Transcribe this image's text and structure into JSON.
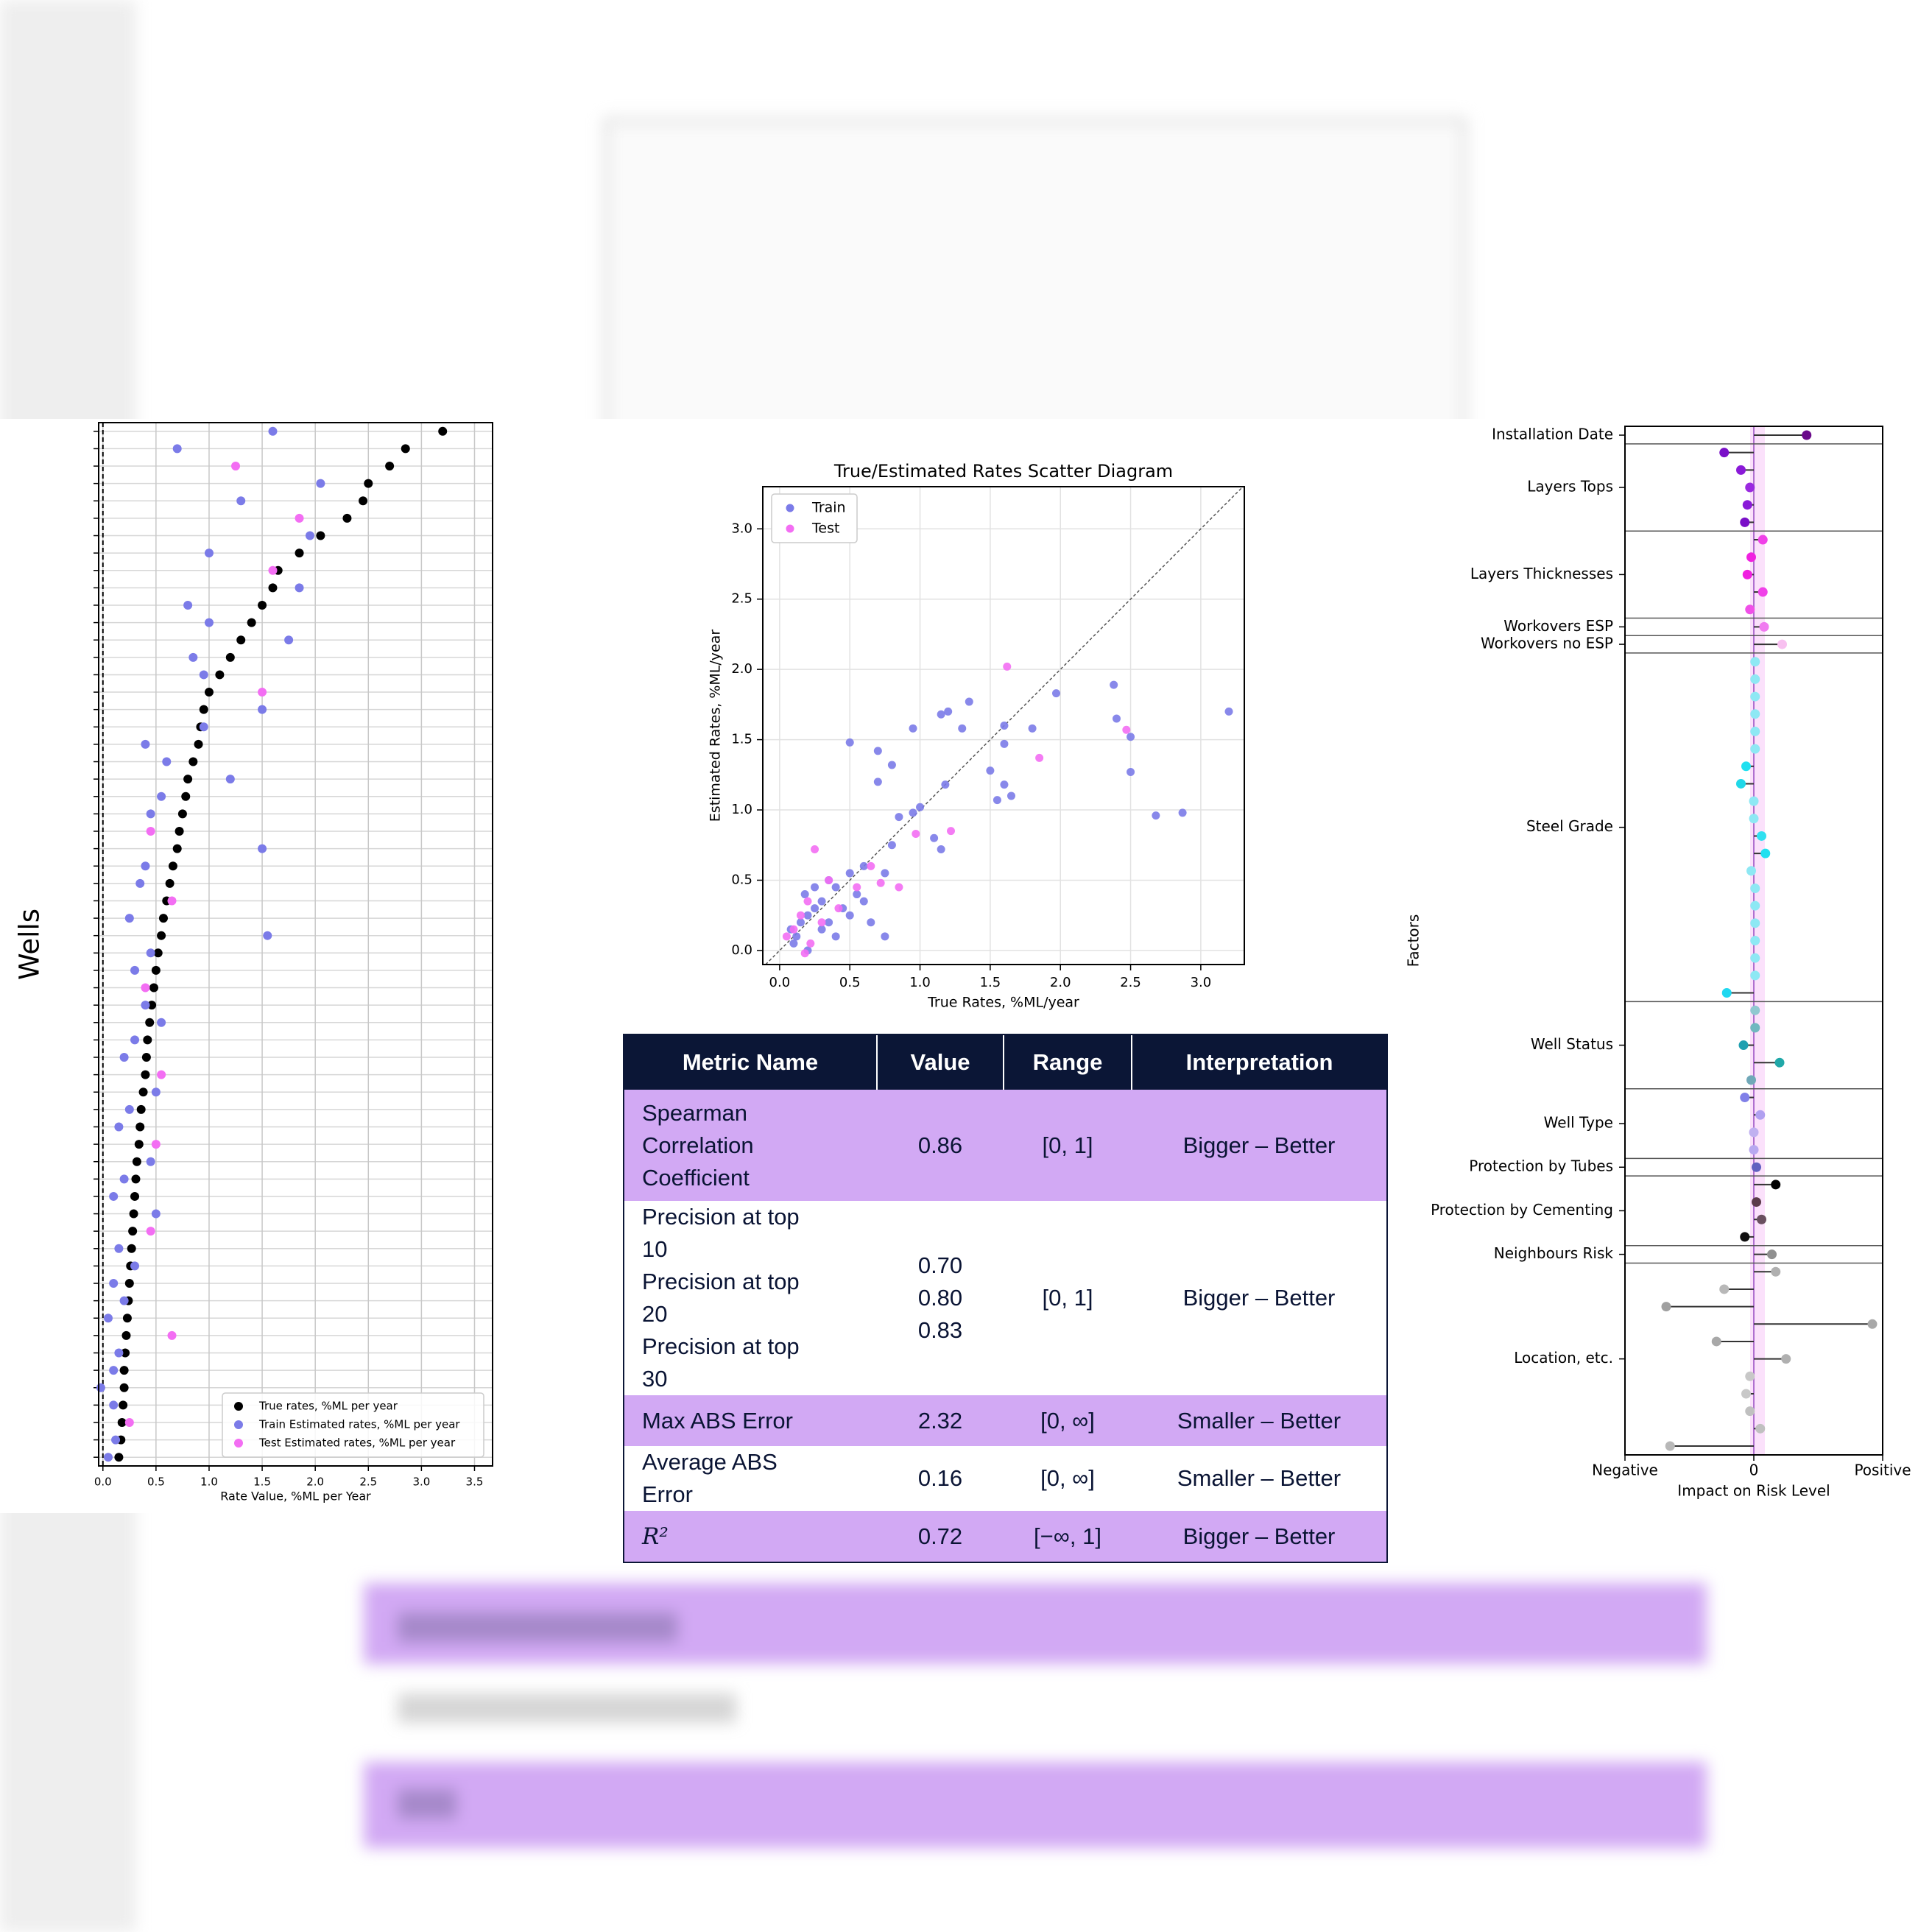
{
  "chart_data": [
    {
      "type": "dot",
      "xlabel": "Rate Value, %ML per Year",
      "ylabel": "Wells",
      "xlim": [
        -0.04,
        3.67
      ],
      "xticks": [
        {
          "value": 0,
          "label": "0.0"
        },
        {
          "value": 0.5,
          "label": "0.5"
        },
        {
          "value": 1,
          "label": "1.0"
        },
        {
          "value": 1.5,
          "label": "1.5"
        },
        {
          "value": 2,
          "label": "2.0"
        },
        {
          "value": 2.5,
          "label": "2.5"
        },
        {
          "value": 3,
          "label": "3.0"
        },
        {
          "value": 3.5,
          "label": "3.5"
        }
      ],
      "grid": true,
      "legend": "lower right",
      "series": [
        {
          "name": "True rates, %ML per year",
          "color": "#000000",
          "values": [
            3.2,
            2.85,
            2.7,
            2.5,
            2.45,
            2.3,
            2.05,
            1.85,
            1.65,
            1.6,
            1.5,
            1.4,
            1.3,
            1.2,
            1.1,
            1.0,
            0.95,
            0.92,
            0.9,
            0.85,
            0.8,
            0.78,
            0.75,
            0.72,
            0.7,
            0.66,
            0.63,
            0.6,
            0.57,
            0.55,
            0.52,
            0.5,
            0.48,
            0.46,
            0.44,
            0.42,
            0.41,
            0.4,
            0.38,
            0.36,
            0.35,
            0.34,
            0.32,
            0.31,
            0.3,
            0.29,
            0.28,
            0.27,
            0.26,
            0.25,
            0.24,
            0.23,
            0.22,
            0.21,
            0.2,
            0.2,
            0.19,
            0.18,
            0.17,
            0.15
          ]
        },
        {
          "name": "Train Estimated rates, %ML per year",
          "color": "#7b7be8",
          "values": [
            1.6,
            0.7,
            null,
            2.05,
            1.3,
            null,
            1.95,
            1.0,
            null,
            1.85,
            0.8,
            1.0,
            1.75,
            0.85,
            0.95,
            null,
            1.5,
            0.95,
            0.4,
            0.6,
            1.2,
            0.55,
            0.45,
            null,
            1.5,
            0.4,
            0.35,
            null,
            0.25,
            1.55,
            0.45,
            0.3,
            null,
            0.4,
            0.55,
            0.3,
            0.2,
            null,
            0.5,
            0.25,
            0.15,
            null,
            0.45,
            0.2,
            0.1,
            0.5,
            null,
            0.15,
            0.3,
            0.1,
            0.2,
            0.05,
            null,
            0.15,
            0.1,
            -0.02,
            0.1,
            null,
            0.12,
            0.05
          ]
        },
        {
          "name": "Test Estimated rates, %ML per year",
          "color": "#f36ef3",
          "values": [
            null,
            null,
            1.25,
            null,
            null,
            1.85,
            null,
            null,
            1.6,
            null,
            null,
            null,
            null,
            null,
            null,
            1.5,
            null,
            null,
            null,
            null,
            null,
            null,
            null,
            0.45,
            null,
            null,
            null,
            0.65,
            null,
            null,
            null,
            null,
            0.4,
            null,
            null,
            null,
            null,
            0.55,
            null,
            null,
            null,
            0.5,
            null,
            null,
            null,
            null,
            0.45,
            null,
            null,
            null,
            null,
            null,
            0.65,
            null,
            null,
            null,
            null,
            0.25,
            null,
            null
          ]
        }
      ]
    },
    {
      "type": "scatter",
      "title": "True/Estimated Rates Scatter Diagram",
      "xlabel": "True Rates, %ML/year",
      "ylabel": "Estimated Rates, %ML/year",
      "xlim": [
        -0.12,
        3.31
      ],
      "ylim": [
        -0.1,
        3.3
      ],
      "xticks": [
        {
          "value": 0,
          "label": "0.0"
        },
        {
          "value": 0.5,
          "label": "0.5"
        },
        {
          "value": 1,
          "label": "1.0"
        },
        {
          "value": 1.5,
          "label": "1.5"
        },
        {
          "value": 2,
          "label": "2.0"
        },
        {
          "value": 2.5,
          "label": "2.5"
        },
        {
          "value": 3,
          "label": "3.0"
        }
      ],
      "yticks": [
        {
          "value": 0,
          "label": "0.0"
        },
        {
          "value": 0.5,
          "label": "0.5"
        },
        {
          "value": 1,
          "label": "1.0"
        },
        {
          "value": 1.5,
          "label": "1.5"
        },
        {
          "value": 2,
          "label": "2.0"
        },
        {
          "value": 2.5,
          "label": "2.5"
        },
        {
          "value": 3,
          "label": "3.0"
        }
      ],
      "grid": true,
      "legend": "upper left",
      "series": [
        {
          "name": "Train",
          "color": "#7b7be8",
          "x": [
            3.2,
            2.87,
            2.68,
            2.5,
            2.5,
            2.4,
            2.38,
            1.97,
            1.8,
            1.6,
            1.6,
            1.65,
            1.55,
            1.6,
            1.5,
            1.35,
            1.3,
            1.2,
            1.15,
            1.18,
            0.95,
            0.5,
            0.7,
            0.8,
            0.7,
            1.0,
            0.95,
            0.85,
            1.1,
            1.15,
            0.8,
            0.6,
            0.5,
            0.4,
            0.35,
            0.3,
            0.25,
            0.2,
            0.15,
            0.12,
            0.1,
            0.2,
            0.3,
            0.45,
            0.55,
            0.65,
            0.75,
            0.4,
            0.25,
            0.18,
            0.08,
            0.35,
            0.5,
            0.6,
            0.75
          ],
          "y": [
            1.7,
            0.98,
            0.96,
            1.52,
            1.27,
            1.65,
            1.89,
            1.83,
            1.58,
            1.6,
            1.47,
            1.1,
            1.07,
            1.18,
            1.28,
            1.77,
            1.58,
            1.7,
            1.68,
            1.18,
            1.58,
            1.48,
            1.42,
            1.32,
            1.2,
            1.02,
            0.98,
            0.95,
            0.8,
            0.72,
            0.75,
            0.6,
            0.55,
            0.45,
            0.5,
            0.35,
            0.3,
            0.25,
            0.2,
            0.1,
            0.05,
            0.0,
            0.15,
            0.3,
            0.4,
            0.2,
            0.1,
            0.1,
            0.45,
            0.4,
            0.15,
            0.2,
            0.25,
            0.35,
            0.55
          ]
        },
        {
          "name": "Test",
          "color": "#f36ef3",
          "x": [
            1.62,
            2.47,
            1.85,
            1.22,
            0.97,
            0.85,
            0.72,
            0.25,
            0.35,
            0.2,
            0.15,
            0.1,
            0.22,
            0.3,
            0.42,
            0.05,
            0.55,
            0.65,
            0.18
          ],
          "y": [
            2.02,
            1.57,
            1.37,
            0.85,
            0.83,
            0.45,
            0.48,
            0.72,
            0.5,
            0.35,
            0.25,
            0.15,
            0.05,
            0.2,
            0.3,
            0.1,
            0.45,
            0.6,
            -0.02
          ]
        }
      ]
    },
    {
      "type": "lollipop",
      "xlabel": "Impact on Risk Level",
      "ylabel": "Factors",
      "xlim": [
        -1,
        1
      ],
      "xticks": [
        {
          "value": -1,
          "label": "Negative"
        },
        0,
        {
          "value": 1,
          "label": "Positive"
        }
      ],
      "groups": [
        {
          "name": "Installation Date",
          "values": [
            0.41
          ],
          "colors": [
            "#6a0a8a"
          ]
        },
        {
          "name": "Layers Tops",
          "values": [
            -0.23,
            -0.1,
            -0.03,
            -0.05,
            -0.07
          ],
          "colors": [
            "#7a10c8",
            "#8a1ad8",
            "#9a2ae0",
            "#8a1ad8",
            "#7a10c8"
          ]
        },
        {
          "name": "Layers Thicknesses",
          "values": [
            0.07,
            -0.02,
            -0.05,
            0.07,
            -0.03
          ],
          "colors": [
            "#f040e8",
            "#f020e0",
            "#f020e0",
            "#f040e8",
            "#f050e8"
          ]
        },
        {
          "name": "Workovers ESP",
          "values": [
            0.08
          ],
          "colors": [
            "#f07af0"
          ]
        },
        {
          "name": "Workovers no ESP",
          "values": [
            0.22
          ],
          "colors": [
            "#f8c0f0"
          ]
        },
        {
          "name": "Steel Grade",
          "values": [
            0.01,
            0.01,
            0.01,
            0.01,
            0.01,
            0.01,
            -0.06,
            -0.1,
            0.0,
            0.0,
            0.06,
            0.09,
            -0.02,
            0.01,
            0.01,
            0.01,
            0.01,
            0.01,
            0.01,
            -0.21
          ],
          "colors": [
            "#8ee8f4",
            "#8ee8f4",
            "#8ee8f4",
            "#8ee8f4",
            "#8ee8f4",
            "#8ee8f4",
            "#20e0f0",
            "#20d8e8",
            "#8ee8f4",
            "#8ee8f4",
            "#30e0f0",
            "#20e0f0",
            "#8ee8f4",
            "#8ee8f4",
            "#8ee8f4",
            "#8ee8f4",
            "#8ee8f4",
            "#8ee8f4",
            "#8ee8f4",
            "#20d8f0"
          ]
        },
        {
          "name": "Well Status",
          "values": [
            0.01,
            0.01,
            -0.08,
            0.2,
            -0.02
          ],
          "colors": [
            "#90c8d0",
            "#70b8c0",
            "#20a0b0",
            "#20a8a8",
            "#70a8b8"
          ]
        },
        {
          "name": "Well Type",
          "values": [
            -0.07,
            0.05,
            0.0,
            0.0
          ],
          "colors": [
            "#8080e8",
            "#b0a0f0",
            "#c0b0f0",
            "#b8a8f0"
          ]
        },
        {
          "name": "Protection by Tubes",
          "values": [
            0.02
          ],
          "colors": [
            "#6060c0"
          ]
        },
        {
          "name": "Protection by Cementing",
          "values": [
            0.17,
            0.02,
            0.06,
            -0.07
          ],
          "colors": [
            "#000000",
            "#5a3a4a",
            "#6a5060",
            "#101010"
          ]
        },
        {
          "name": "Neighbours Risk",
          "values": [
            0.14
          ],
          "colors": [
            "#909090"
          ]
        },
        {
          "name": "Location, etc.",
          "values": [
            0.17,
            -0.23,
            -0.68,
            0.92,
            -0.29,
            0.25,
            -0.03,
            -0.06,
            -0.03,
            0.05,
            -0.65
          ],
          "colors": [
            "#b0b0b0",
            "#b8b8b8",
            "#a0a0a0",
            "#a8a8a8",
            "#a8a8a8",
            "#b0b0b0",
            "#c8c8c8",
            "#c8c8c8",
            "#c0c0c0",
            "#c0c0c0",
            "#b8b8b8"
          ]
        }
      ]
    }
  ],
  "table": {
    "header": [
      "Metric Name",
      "Value",
      "Range",
      "Interpretation"
    ],
    "rows": [
      {
        "metric": "Spearman Correlation Coefficient",
        "value": "0.86",
        "range": "[0, 1]",
        "interpretation": "Bigger – Better"
      },
      {
        "metric": [
          "Precision at top 10",
          "Precision at top 20",
          "Precision at top 30"
        ],
        "value": [
          "0.70",
          "0.80",
          "0.83"
        ],
        "range": "[0, 1]",
        "interpretation": "Bigger – Better"
      },
      {
        "metric": "Max ABS Error",
        "value": "2.32",
        "range": "[0, ∞]",
        "interpretation": "Smaller – Better"
      },
      {
        "metric": "Average ABS Error",
        "value": "0.16",
        "range": "[0, ∞]",
        "interpretation": "Smaller – Better"
      },
      {
        "metric": "R²",
        "value": "0.72",
        "range": "[−∞, 1]",
        "interpretation": "Bigger – Better"
      }
    ]
  }
}
